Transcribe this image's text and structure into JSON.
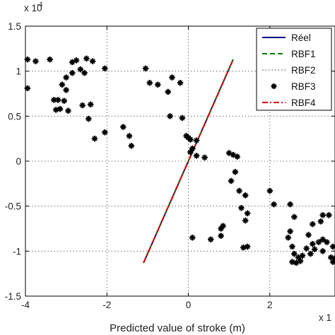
{
  "chart_data": {
    "type": "scatter",
    "xlabel": "Predicted value of stroke (m)",
    "x_multiplier": {
      "base": "x 1",
      "exponent": ""
    },
    "y_multiplier": {
      "base": "x 10",
      "exponent": "-4"
    },
    "xlim": [
      -4,
      3.6
    ],
    "ylim": [
      -1.5,
      1.5
    ],
    "x_ticks": [
      -4,
      -2,
      0,
      2
    ],
    "x_tick_labels": [
      "-4",
      "-2",
      "0",
      "2"
    ],
    "y_ticks": [
      -1.5,
      -1,
      -0.5,
      0,
      0.5,
      1,
      1.5
    ],
    "y_tick_labels": [
      "-1.5",
      "-1",
      "-0.5",
      "0",
      "0.5",
      "1",
      "1.5"
    ],
    "grid": true,
    "legend_position": "top-right",
    "series": [
      {
        "name": "Réel",
        "style": "solid",
        "color": "#000080",
        "marker": "none",
        "points": [
          [
            -1.1,
            -1.13
          ],
          [
            1.1,
            1.13
          ]
        ]
      },
      {
        "name": "RBF1",
        "style": "dashed",
        "color": "#008000",
        "marker": "none",
        "points": [
          [
            -1.1,
            -1.13
          ],
          [
            1.1,
            1.13
          ]
        ]
      },
      {
        "name": "RBF2",
        "style": "dotted",
        "color": "#333333",
        "marker": "none",
        "points": [
          [
            -1.1,
            -1.13
          ],
          [
            1.1,
            1.13
          ]
        ]
      },
      {
        "name": "RBF3",
        "style": "none",
        "color": "#000000",
        "marker": "star",
        "points": [
          [
            -3.95,
            1.13
          ],
          [
            -3.75,
            1.11
          ],
          [
            -3.4,
            1.13
          ],
          [
            -3.95,
            0.81
          ],
          [
            -2.85,
            1.1
          ],
          [
            -2.75,
            1.12
          ],
          [
            -2.5,
            1.14
          ],
          [
            -2.35,
            1.11
          ],
          [
            -2.65,
            1.02
          ],
          [
            -2.85,
            0.98
          ],
          [
            -2.55,
            0.98
          ],
          [
            -3.0,
            0.93
          ],
          [
            -3.1,
            0.85
          ],
          [
            -3.0,
            0.79
          ],
          [
            -3.3,
            0.68
          ],
          [
            -3.2,
            0.68
          ],
          [
            -3.05,
            0.67
          ],
          [
            -3.25,
            0.57
          ],
          [
            -3.15,
            0.58
          ],
          [
            -2.95,
            0.56
          ],
          [
            -2.4,
            0.63
          ],
          [
            -2.6,
            0.62
          ],
          [
            -2.45,
            0.47
          ],
          [
            -2.3,
            0.25
          ],
          [
            -2.05,
            0.32
          ],
          [
            -1.6,
            0.38
          ],
          [
            -1.45,
            0.28
          ],
          [
            -1.4,
            0.17
          ],
          [
            -2.05,
            1.03
          ],
          [
            -1.05,
            1.03
          ],
          [
            -0.95,
            0.87
          ],
          [
            -0.75,
            0.85
          ],
          [
            -0.4,
            0.93
          ],
          [
            -0.2,
            0.87
          ],
          [
            -0.5,
            0.77
          ],
          [
            -0.45,
            0.5
          ],
          [
            -0.15,
            0.48
          ],
          [
            -0.05,
            0.28
          ],
          [
            0.0,
            0.26
          ],
          [
            0.05,
            0.24
          ],
          [
            0.2,
            0.23
          ],
          [
            0.1,
            0.14
          ],
          [
            0.05,
            0.1
          ],
          [
            0.2,
            0.06
          ],
          [
            0.4,
            0.04
          ],
          [
            1.0,
            0.09
          ],
          [
            1.1,
            0.07
          ],
          [
            1.2,
            0.05
          ],
          [
            1.15,
            -0.12
          ],
          [
            1.05,
            -0.22
          ],
          [
            1.25,
            -0.33
          ],
          [
            1.4,
            -0.38
          ],
          [
            2.0,
            -0.33
          ],
          [
            2.1,
            -0.48
          ],
          [
            2.5,
            -0.48
          ],
          [
            2.6,
            -0.62
          ],
          [
            2.5,
            -0.78
          ],
          [
            2.45,
            -0.85
          ],
          [
            2.55,
            -0.95
          ],
          [
            2.6,
            -1.03
          ],
          [
            2.7,
            -1.07
          ],
          [
            2.55,
            -1.12
          ],
          [
            2.65,
            -1.13
          ],
          [
            2.75,
            -1.11
          ],
          [
            2.8,
            -1.05
          ],
          [
            2.9,
            -0.97
          ],
          [
            3.0,
            -1.03
          ],
          [
            3.1,
            -0.98
          ],
          [
            2.95,
            -0.82
          ],
          [
            3.05,
            -0.92
          ],
          [
            3.2,
            -0.9
          ],
          [
            3.3,
            -0.87
          ],
          [
            3.4,
            -0.9
          ],
          [
            3.25,
            -0.67
          ],
          [
            3.3,
            -0.6
          ],
          [
            3.05,
            -0.7
          ],
          [
            3.45,
            -0.6
          ],
          [
            3.3,
            -1.0
          ],
          [
            3.5,
            -1.07
          ],
          [
            3.55,
            -1.12
          ],
          [
            0.1,
            -0.85
          ],
          [
            0.55,
            -0.87
          ],
          [
            0.8,
            -0.75
          ],
          [
            0.85,
            -0.72
          ],
          [
            1.4,
            -0.66
          ],
          [
            1.45,
            -0.58
          ],
          [
            1.45,
            -0.95
          ],
          [
            1.35,
            -0.96
          ],
          [
            1.3,
            -0.52
          ],
          [
            0.8,
            -0.83
          ],
          [
            3.55,
            -0.95
          ],
          [
            3.6,
            -1.08
          ]
        ]
      },
      {
        "name": "RBF4",
        "style": "dashdot",
        "color": "#e00000",
        "marker": "none",
        "points": [
          [
            -1.1,
            -1.13
          ],
          [
            1.1,
            1.13
          ]
        ]
      }
    ]
  }
}
